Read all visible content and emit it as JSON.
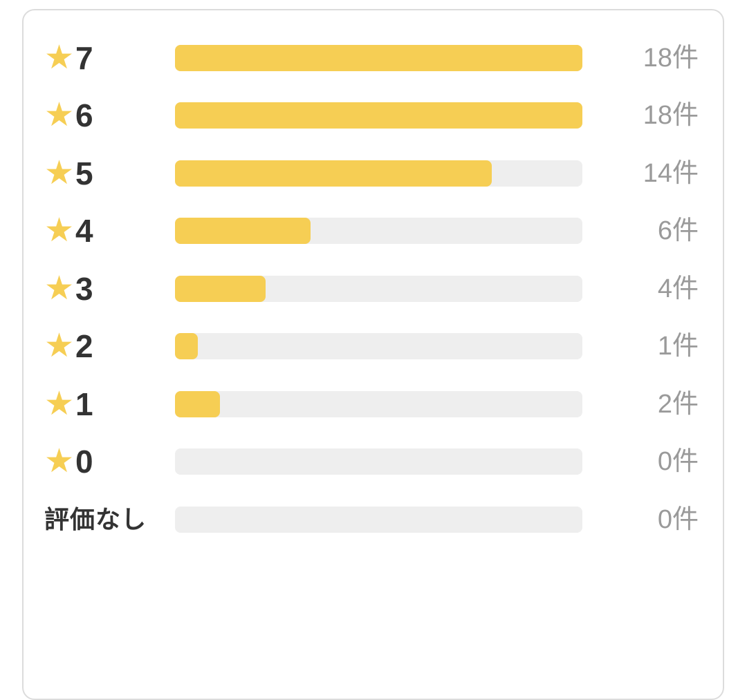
{
  "chart_data": {
    "type": "bar",
    "orientation": "horizontal",
    "title": "",
    "categories": [
      "7",
      "6",
      "5",
      "4",
      "3",
      "2",
      "1",
      "0",
      "評価なし"
    ],
    "values": [
      18,
      18,
      14,
      6,
      4,
      1,
      2,
      0,
      0
    ],
    "max_value": 18,
    "count_labels": [
      "18件",
      "18件",
      "14件",
      "6件",
      "4件",
      "1件",
      "2件",
      "0件",
      "0件"
    ],
    "count_suffix": "件",
    "legend": "none",
    "grid": "off"
  },
  "rows": [
    {
      "star": true,
      "label": "7",
      "count": "18件",
      "value": 18
    },
    {
      "star": true,
      "label": "6",
      "count": "18件",
      "value": 18
    },
    {
      "star": true,
      "label": "5",
      "count": "14件",
      "value": 14
    },
    {
      "star": true,
      "label": "4",
      "count": "6件",
      "value": 6
    },
    {
      "star": true,
      "label": "3",
      "count": "4件",
      "value": 4
    },
    {
      "star": true,
      "label": "2",
      "count": "1件",
      "value": 1
    },
    {
      "star": true,
      "label": "1",
      "count": "2件",
      "value": 2
    },
    {
      "star": true,
      "label": "0",
      "count": "0件",
      "value": 0
    },
    {
      "star": false,
      "label": "評価なし",
      "count": "0件",
      "value": 0
    }
  ],
  "icons": {
    "star": "★"
  },
  "colors": {
    "bar_fill": "#f6ce54",
    "bar_track": "#eeeeee",
    "count_text": "#9a9a9a",
    "label_text": "#333333",
    "card_border": "#dcdcdc",
    "background": "#ffffff"
  }
}
